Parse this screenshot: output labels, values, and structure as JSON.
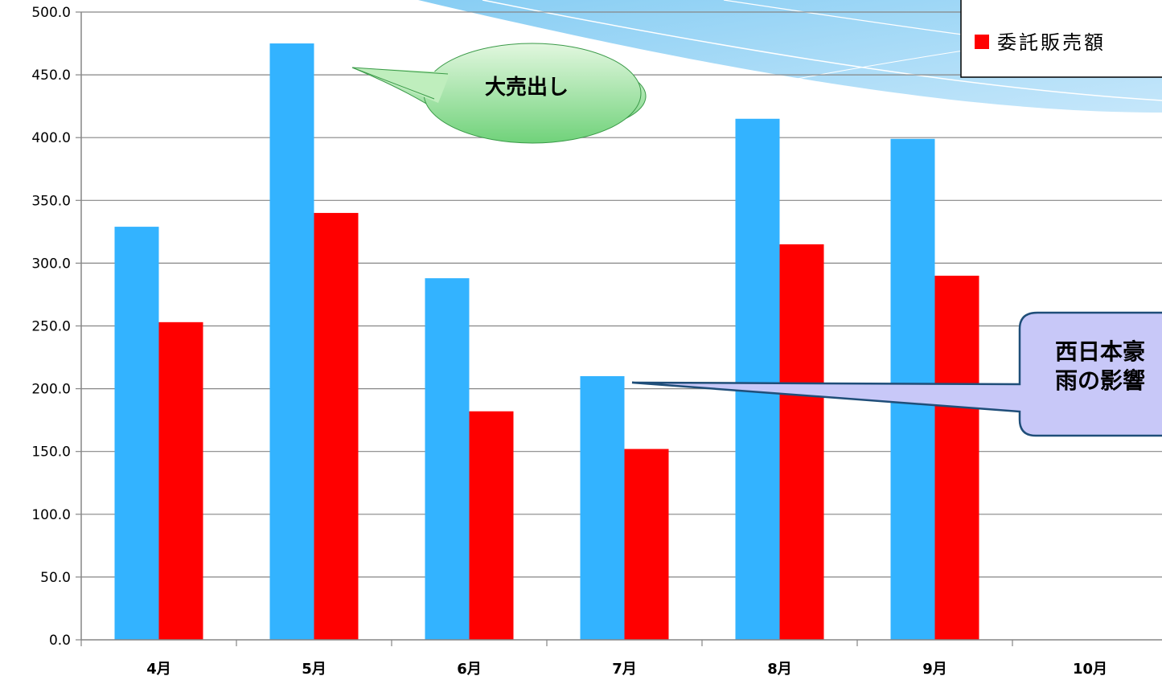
{
  "chart_data": {
    "type": "bar",
    "categories": [
      "4月",
      "5月",
      "6月",
      "7月",
      "8月",
      "9月",
      "10月"
    ],
    "series": [
      {
        "color": "#33b3ff",
        "values": [
          329,
          475,
          288,
          210,
          415,
          399,
          null
        ]
      },
      {
        "name": "委託販売額",
        "color": "#ff0000",
        "values": [
          253,
          340,
          182,
          152,
          315,
          290,
          null
        ]
      }
    ],
    "ylim": [
      0,
      500
    ],
    "yticks": [
      "0.0",
      "50.0",
      "100.0",
      "150.0",
      "200.0",
      "250.0",
      "300.0",
      "350.0",
      "400.0",
      "450.0",
      "500.0"
    ],
    "grid": true,
    "legend_position": "top-right",
    "annotations": [
      {
        "text": "大売出し",
        "category": "5月"
      },
      {
        "text_line1": "西日本豪",
        "text_line2": "雨の影響",
        "category": "7月"
      }
    ]
  }
}
